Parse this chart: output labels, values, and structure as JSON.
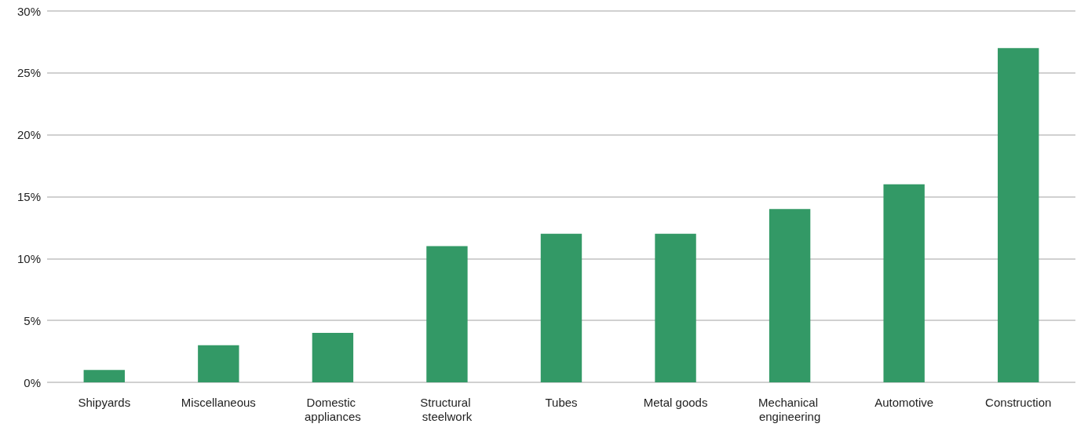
{
  "chart_data": {
    "type": "bar",
    "categories": [
      "Shipyards",
      "Miscellaneous",
      "Domestic appliances",
      "Structural steelwork",
      "Tubes",
      "Metal goods",
      "Mechanical engineering",
      "Automotive",
      "Construction"
    ],
    "values": [
      1,
      3,
      4,
      11,
      12,
      12,
      14,
      16,
      27
    ],
    "color": "#339966",
    "ylim": [
      0,
      30
    ],
    "yticks": [
      {
        "value": 0,
        "label": "0%"
      },
      {
        "value": 5,
        "label": "5%"
      },
      {
        "value": 10,
        "label": "10%"
      },
      {
        "value": 15,
        "label": "15%"
      },
      {
        "value": 20,
        "label": "20%"
      },
      {
        "value": 25,
        "label": "25%"
      },
      {
        "value": 30,
        "label": "30%"
      }
    ],
    "grid": "y"
  }
}
